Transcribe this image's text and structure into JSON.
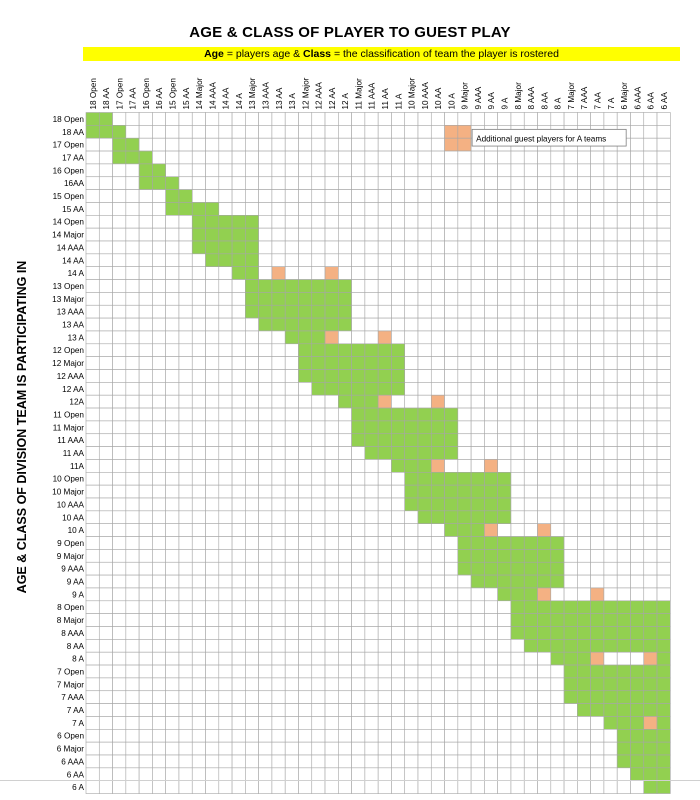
{
  "title": "AGE & CLASS OF PLAYER TO GUEST PLAY",
  "subtitle": {
    "part1_bold": "Age",
    "part2": " = players age & ",
    "part3_bold": "Class",
    "part4": " = the classification of team the player is rostered"
  },
  "side_label": "AGE & CLASS OF DIVISION TEAM IS PARTICIPATING IN",
  "legend": {
    "text": "Additional guest players for A teams",
    "color": "#f4b183"
  },
  "colors": {
    "allowed": "#92d050",
    "additional": "#f4b183",
    "grid": "#a6a6a6",
    "band": "#ffff00"
  },
  "column_labels": [
    "18 Open",
    "18 AA",
    "17 Open",
    "17 AA",
    "16 Open",
    "16 AA",
    "15 Open",
    "15 AA",
    "14 Major",
    "14 AAA",
    "14 AA",
    "14 A",
    "13 Major",
    "13 AAA",
    "13 AA",
    "13 A",
    "12 Major",
    "12 AAA",
    "12 AA",
    "12 A",
    "11 Major",
    "11 AAA",
    "11 AA",
    "11 A",
    "10 Major",
    "10 AAA",
    "10 AA",
    "10 A",
    "9 Major",
    "9 AAA",
    "9 AA",
    "9 A",
    "8 Major",
    "8 AAA",
    "8 AA",
    "8 A",
    "7 Major",
    "7 AAA",
    "7 AA",
    "7 A",
    "6 Major",
    "6 AAA",
    "6 AA",
    "6 AA"
  ],
  "row_labels": [
    "18 Open",
    "18 AA",
    "17 Open",
    "17 AA",
    "16 Open",
    "16AA",
    "15 Open",
    "15 AA",
    "14 Open",
    "14 Major",
    "14 AAA",
    "14 AA",
    "14 A",
    "13 Open",
    "13 Major",
    "13 AAA",
    "13 AA",
    "13 A",
    "12 Open",
    "12 Major",
    "12 AAA",
    "12 AA",
    "12A",
    "11 Open",
    "11 Major",
    "11 AAA",
    "11 AA",
    "11A",
    "10 Open",
    "10 Major",
    "10 AAA",
    "10 AA",
    "10 A",
    "9 Open",
    "9 Major",
    "9 AAA",
    "9 AA",
    "9 A",
    "8 Open",
    "8 Major",
    "8 AAA",
    "8 AA",
    "8 A",
    "7 Open",
    "7 Major",
    "7 AAA",
    "7 AA",
    "7 A",
    "6 Open",
    "6 Major",
    "6 AAA",
    "6 AA",
    "6 A"
  ],
  "row_fill_ranges": [
    [
      0,
      1
    ],
    [
      0,
      2
    ],
    [
      2,
      3
    ],
    [
      2,
      4
    ],
    [
      4,
      5
    ],
    [
      4,
      6
    ],
    [
      6,
      7
    ],
    [
      6,
      9
    ],
    [
      8,
      12
    ],
    [
      8,
      12
    ],
    [
      8,
      12
    ],
    [
      9,
      12
    ],
    [
      11,
      12
    ],
    [
      12,
      19
    ],
    [
      12,
      19
    ],
    [
      12,
      19
    ],
    [
      13,
      19
    ],
    [
      15,
      19
    ],
    [
      16,
      23
    ],
    [
      16,
      23
    ],
    [
      16,
      23
    ],
    [
      17,
      23
    ],
    [
      19,
      23
    ],
    [
      20,
      27
    ],
    [
      20,
      27
    ],
    [
      20,
      27
    ],
    [
      21,
      27
    ],
    [
      23,
      27
    ],
    [
      24,
      31
    ],
    [
      24,
      31
    ],
    [
      24,
      31
    ],
    [
      25,
      31
    ],
    [
      27,
      31
    ],
    [
      28,
      35
    ],
    [
      28,
      35
    ],
    [
      28,
      35
    ],
    [
      29,
      35
    ],
    [
      31,
      35
    ],
    [
      32,
      43
    ],
    [
      32,
      43
    ],
    [
      32,
      43
    ],
    [
      33,
      43
    ],
    [
      35,
      43
    ],
    [
      36,
      43
    ],
    [
      36,
      43
    ],
    [
      36,
      43
    ],
    [
      37,
      43
    ],
    [
      39,
      43
    ],
    [
      40,
      43
    ],
    [
      40,
      43
    ],
    [
      40,
      43
    ],
    [
      41,
      43
    ],
    [
      42,
      43
    ]
  ],
  "additional_cells": [
    [
      1,
      27
    ],
    [
      1,
      28
    ],
    [
      2,
      27
    ],
    [
      2,
      28
    ],
    [
      12,
      14
    ],
    [
      12,
      18
    ],
    [
      17,
      18
    ],
    [
      17,
      22
    ],
    [
      22,
      22
    ],
    [
      22,
      26
    ],
    [
      27,
      26
    ],
    [
      27,
      30
    ],
    [
      32,
      30
    ],
    [
      32,
      34
    ],
    [
      37,
      34
    ],
    [
      37,
      38
    ],
    [
      42,
      38
    ],
    [
      42,
      42
    ],
    [
      47,
      42
    ]
  ],
  "empty_cells": [
    [
      12,
      13
    ],
    [
      12,
      15
    ],
    [
      12,
      16
    ],
    [
      12,
      17
    ],
    [
      17,
      19
    ],
    [
      17,
      20
    ],
    [
      17,
      21
    ],
    [
      22,
      23
    ],
    [
      22,
      24
    ],
    [
      22,
      25
    ],
    [
      27,
      27
    ],
    [
      27,
      28
    ],
    [
      27,
      29
    ],
    [
      32,
      31
    ],
    [
      32,
      32
    ],
    [
      32,
      33
    ],
    [
      37,
      35
    ],
    [
      37,
      36
    ],
    [
      37,
      37
    ],
    [
      42,
      39
    ],
    [
      42,
      40
    ],
    [
      42,
      41
    ]
  ]
}
